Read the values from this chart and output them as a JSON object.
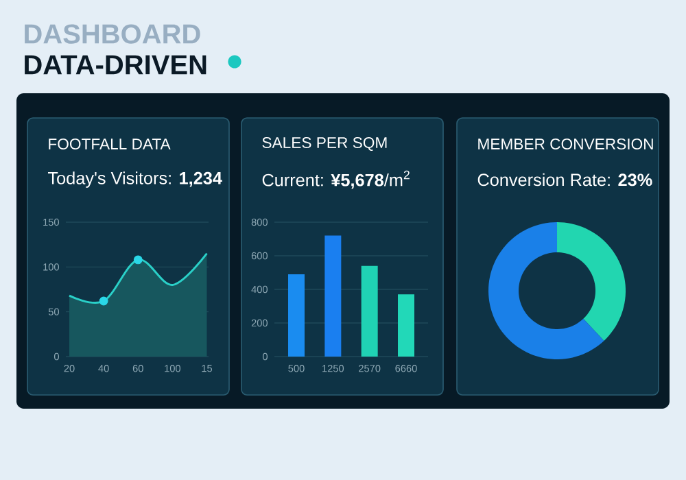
{
  "chart_data": [
    {
      "type": "other",
      "title": "DATA-DRIVEN",
      "annotations": [
        "DASHBOARD"
      ]
    },
    {
      "type": "area",
      "title": "FOOTFALL DATA",
      "subtitle": "Today's Visitors: **1,234**",
      "categories": [
        "20",
        "40",
        "60",
        "100",
        "15"
      ],
      "series": [
        {
          "type": "area",
          "color": "#2ad0c8",
          "values": [
            68,
            62,
            108,
            80,
            115
          ]
        },
        {
          "type": "scatter",
          "color": "#2ad8e8",
          "x": [
            "40",
            "60"
          ],
          "values": [
            62,
            108
          ]
        }
      ],
      "ylim": [
        0,
        150
      ],
      "yticks": [
        0,
        50,
        100,
        150
      ],
      "grid": "y"
    },
    {
      "type": "bar",
      "title": "SALES PER SQM",
      "subtitle": "Current: **¥5,678**/m$^{2}$",
      "categories": [
        "500",
        "1250",
        "2570",
        "6660"
      ],
      "values": [
        490,
        720,
        540,
        370
      ],
      "colors": [
        "#1a8cf0",
        "#1a7ff0",
        "#20d2b4",
        "#22d8b8"
      ],
      "ylim": [
        0,
        800
      ],
      "yticks": [
        0,
        200,
        400,
        600,
        800
      ],
      "grid": "y"
    },
    {
      "type": "donut",
      "title": "MEMBER CONVERSION",
      "subtitle": "Conversion Rate: **23%**",
      "categories": [
        null,
        null
      ],
      "values": [
        38,
        62
      ],
      "colors": [
        "#22d6b0",
        "#1a80e8"
      ]
    }
  ]
}
